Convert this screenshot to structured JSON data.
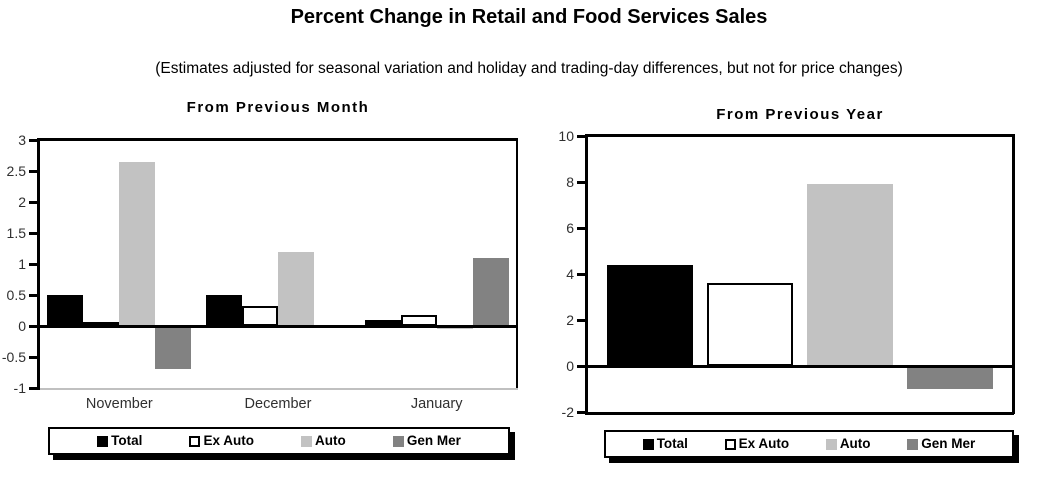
{
  "page": {
    "title": "Percent Change in Retail and Food Services Sales",
    "subtitle": "(Estimates adjusted for seasonal variation and holiday and trading-day differences, but not for price changes)"
  },
  "colors": {
    "total": "#000000",
    "ex_auto": "#ffffff",
    "ex_auto_border": "#000000",
    "auto": "#c2c2c2",
    "gen_mer": "#828282",
    "axis": "#000000",
    "baseline_gray": "#c0c0c0"
  },
  "chart_data": [
    {
      "type": "bar",
      "title": "From Previous Month",
      "categories": [
        "November",
        "December",
        "January"
      ],
      "series": [
        {
          "name": "Total",
          "color": "#000000",
          "values": [
            0.5,
            0.5,
            0.1
          ]
        },
        {
          "name": "Ex Auto",
          "color": "#ffffff",
          "border": "#000000",
          "values": [
            0.03,
            0.33,
            0.17
          ]
        },
        {
          "name": "Auto",
          "color": "#c2c2c2",
          "values": [
            2.65,
            1.2,
            -0.05
          ]
        },
        {
          "name": "Gen Mer",
          "color": "#828282",
          "values": [
            -0.7,
            0,
            1.1
          ]
        }
      ],
      "ylim": [
        -1,
        3
      ],
      "yticks": [
        3,
        2.5,
        2,
        1.5,
        1,
        0.5,
        0,
        -0.5,
        -1
      ],
      "grid": false,
      "legend_position": "bottom"
    },
    {
      "type": "bar",
      "title": "From Previous Year",
      "categories": [
        ""
      ],
      "series": [
        {
          "name": "Total",
          "color": "#000000",
          "values": [
            4.4
          ]
        },
        {
          "name": "Ex Auto",
          "color": "#ffffff",
          "border": "#000000",
          "values": [
            3.6
          ]
        },
        {
          "name": "Auto",
          "color": "#c2c2c2",
          "values": [
            7.9
          ]
        },
        {
          "name": "Gen Mer",
          "color": "#828282",
          "values": [
            -1.0
          ]
        }
      ],
      "ylim": [
        -2,
        10
      ],
      "yticks": [
        10,
        8,
        6,
        4,
        2,
        0,
        -2
      ],
      "grid": false,
      "legend_position": "bottom"
    }
  ]
}
